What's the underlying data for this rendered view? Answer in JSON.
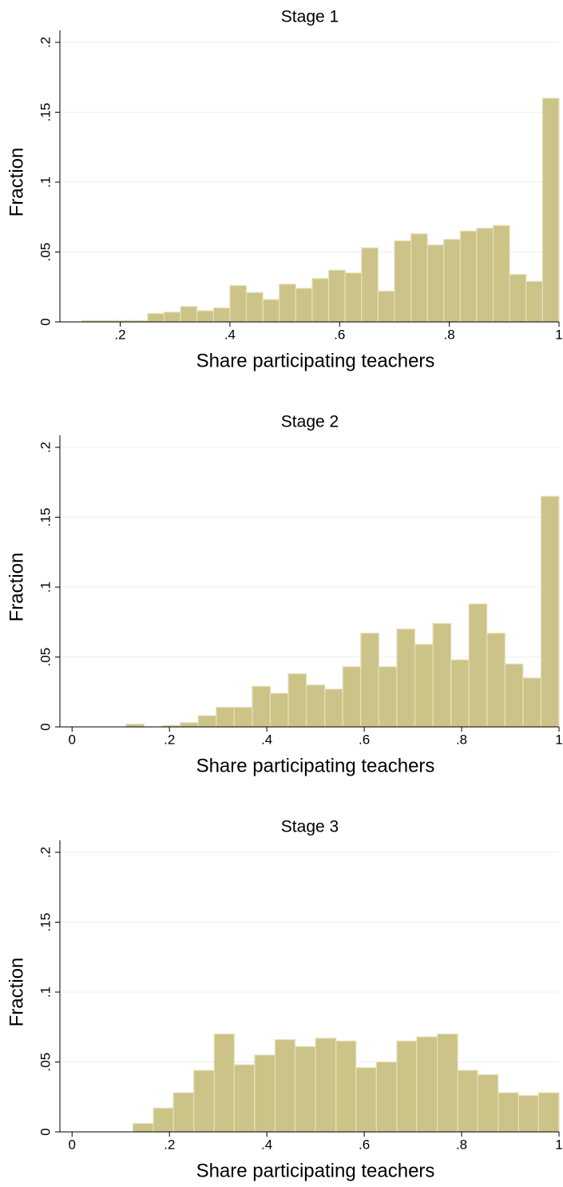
{
  "chart_data": [
    {
      "type": "histogram",
      "title": "Stage 1",
      "xlabel": "Share participating teachers",
      "ylabel": "Fraction",
      "color": "#cbc387",
      "grid": true,
      "bins": [
        0.13,
        0.16,
        0.19,
        0.22,
        0.25,
        0.28,
        0.31,
        0.34,
        0.37,
        0.4,
        0.43,
        0.46,
        0.49,
        0.52,
        0.55,
        0.58,
        0.61,
        0.64,
        0.67,
        0.7,
        0.73,
        0.76,
        0.79,
        0.82,
        0.85,
        0.88,
        0.91,
        0.94,
        0.97,
        1
      ],
      "values": [
        0.001,
        0.001,
        0.001,
        0.001,
        0.006,
        0.007,
        0.011,
        0.008,
        0.01,
        0.026,
        0.021,
        0.016,
        0.027,
        0.024,
        0.031,
        0.037,
        0.035,
        0.053,
        0.022,
        0.058,
        0.063,
        0.055,
        0.059,
        0.065,
        0.067,
        0.069,
        0.034,
        0.029,
        0.16
      ],
      "xlim": [
        0.09,
        1
      ],
      "xticks": [
        {
          "value": 0.2,
          "label": ".2"
        },
        {
          "value": 0.4,
          "label": ".4"
        },
        {
          "value": 0.6,
          "label": ".6"
        },
        {
          "value": 0.8,
          "label": ".8"
        },
        1
      ],
      "ylim": [
        0,
        0.2
      ],
      "yticks": [
        0,
        {
          "value": 0.05,
          "label": ".05"
        },
        {
          "value": 0.1,
          "label": ".1"
        },
        {
          "value": 0.15,
          "label": ".15"
        },
        {
          "value": 0.2,
          "label": ".2"
        }
      ]
    },
    {
      "type": "histogram",
      "title": "Stage 2",
      "xlabel": "Share participating teachers",
      "ylabel": "Fraction",
      "color": "#cbc387",
      "grid": true,
      "bins": [
        0,
        0.037,
        0.074,
        0.111,
        0.148,
        0.185,
        0.222,
        0.259,
        0.296,
        0.333,
        0.37,
        0.407,
        0.444,
        0.481,
        0.519,
        0.556,
        0.593,
        0.63,
        0.667,
        0.704,
        0.741,
        0.778,
        0.815,
        0.852,
        0.889,
        0.926,
        0.963,
        1
      ],
      "values": [
        0,
        0,
        0,
        0.002,
        0,
        0.001,
        0.003,
        0.008,
        0.014,
        0.014,
        0.029,
        0.024,
        0.038,
        0.03,
        0.027,
        0.043,
        0.067,
        0.043,
        0.07,
        0.059,
        0.074,
        0.048,
        0.088,
        0.067,
        0.045,
        0.035,
        0.165
      ],
      "xlim": [
        -0.025,
        1
      ],
      "xticks": [
        0,
        {
          "value": 0.2,
          "label": ".2"
        },
        {
          "value": 0.4,
          "label": ".4"
        },
        {
          "value": 0.6,
          "label": ".6"
        },
        {
          "value": 0.8,
          "label": ".8"
        },
        1
      ],
      "ylim": [
        0,
        0.2
      ],
      "yticks": [
        0,
        {
          "value": 0.05,
          "label": ".05"
        },
        {
          "value": 0.1,
          "label": ".1"
        },
        {
          "value": 0.15,
          "label": ".15"
        },
        {
          "value": 0.2,
          "label": ".2"
        }
      ]
    },
    {
      "type": "histogram",
      "title": "Stage 3",
      "xlabel": "Share participating teachers",
      "ylabel": "Fraction",
      "color": "#cbc387",
      "grid": true,
      "bins": [
        0.125,
        0.167,
        0.208,
        0.25,
        0.292,
        0.333,
        0.375,
        0.417,
        0.458,
        0.5,
        0.542,
        0.583,
        0.625,
        0.667,
        0.708,
        0.75,
        0.792,
        0.833,
        0.875,
        0.917,
        0.958,
        1
      ],
      "values": [
        0.006,
        0.017,
        0.028,
        0.044,
        0.07,
        0.048,
        0.055,
        0.066,
        0.061,
        0.067,
        0.065,
        0.046,
        0.05,
        0.065,
        0.068,
        0.07,
        0.044,
        0.041,
        0.028,
        0.026,
        0.028
      ],
      "xlim": [
        -0.025,
        1
      ],
      "xticks": [
        0,
        {
          "value": 0.2,
          "label": ".2"
        },
        {
          "value": 0.4,
          "label": ".4"
        },
        {
          "value": 0.6,
          "label": ".6"
        },
        {
          "value": 0.8,
          "label": ".8"
        },
        1
      ],
      "ylim": [
        0,
        0.2
      ],
      "yticks": [
        0,
        {
          "value": 0.05,
          "label": ".05"
        },
        {
          "value": 0.1,
          "label": ".1"
        },
        {
          "value": 0.15,
          "label": ".15"
        },
        {
          "value": 0.2,
          "label": ".2"
        }
      ]
    }
  ]
}
